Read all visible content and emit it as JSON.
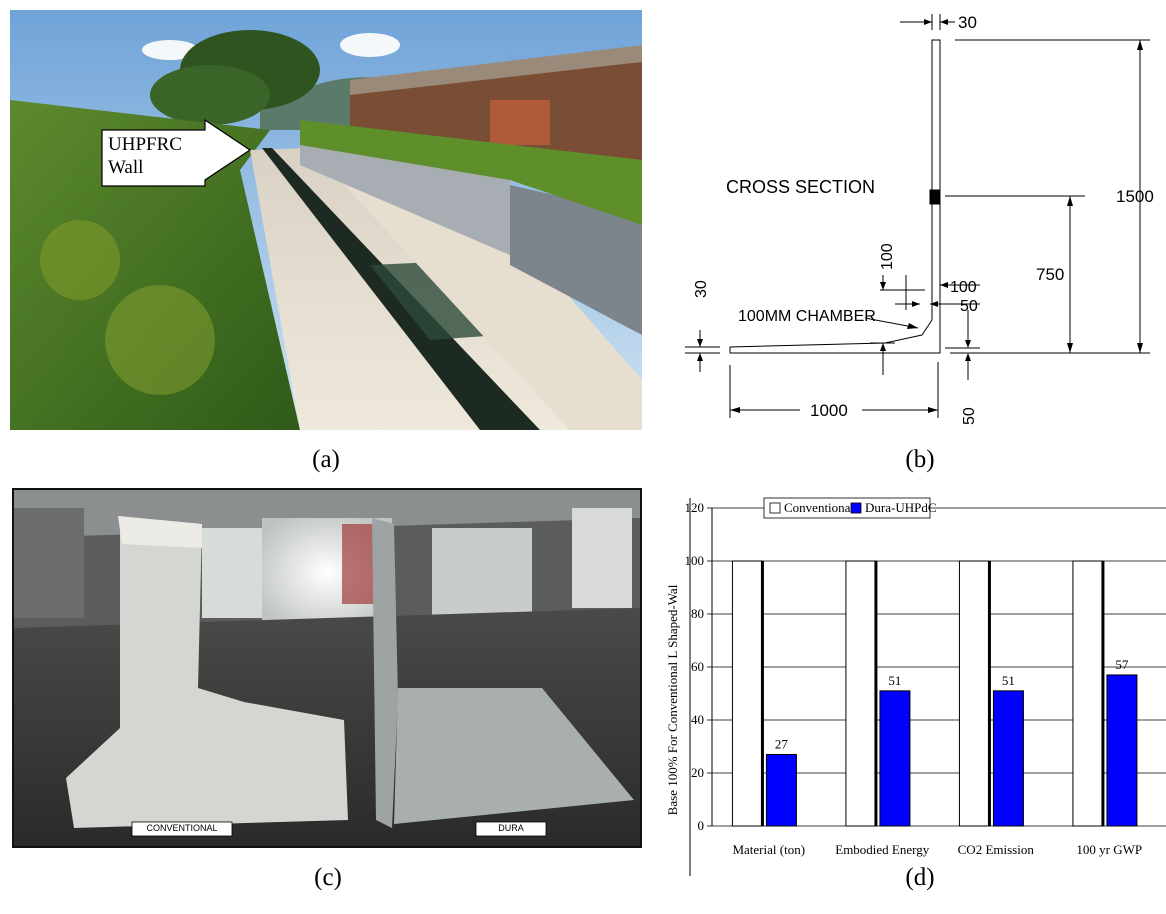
{
  "captions": {
    "a": "(a)",
    "b": "(b)",
    "c": "(c)",
    "d": "(d)"
  },
  "panel_a": {
    "callout_label": "UHPFRC\nWall",
    "callout_line1": "UHPFRC",
    "callout_line2": "Wall"
  },
  "panel_b": {
    "title": "CROSS SECTION",
    "chamber_label": "100MM CHAMBER",
    "dims": {
      "top_thickness": "30",
      "height": "1500",
      "mid_height": "750",
      "d100_vertical": "100",
      "d100_horizontal": "100",
      "d50_horizontal": "50",
      "d30_left": "30",
      "d50_bottom": "50",
      "base_length": "1000"
    }
  },
  "panel_c": {
    "label_left": "CONVENTIONAL",
    "label_right": "DURA"
  },
  "chart_data": {
    "type": "bar",
    "categories": [
      "Material (ton)",
      "Embodied Energy",
      "CO2 Emission",
      "100 yr GWP"
    ],
    "series": [
      {
        "name": "Conventional",
        "values": [
          100,
          100,
          100,
          100
        ],
        "color": "#ffffff"
      },
      {
        "name": "Dura-UHPdC",
        "values": [
          27,
          51,
          51,
          57
        ],
        "color": "#0000ff"
      }
    ],
    "data_labels": [
      "27",
      "51",
      "51",
      "57"
    ],
    "ylabel": "Base 100% For Conventional L Shaped-Wal",
    "ylim": [
      0,
      120
    ],
    "yticks": [
      "0",
      "20",
      "40",
      "60",
      "80",
      "100",
      "120"
    ],
    "grid": true,
    "legend": "top"
  }
}
